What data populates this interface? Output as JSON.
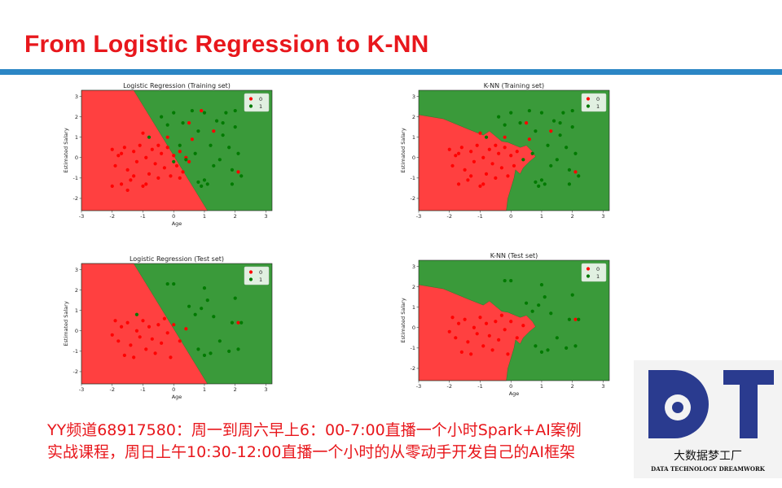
{
  "slide": {
    "title": "From Logistic Regression to K-NN",
    "footer_line1": "YY频道68917580：周一到周六早上6：00-7:00直播一个小时Spark+AI案例",
    "footer_line2": "实战课程，周日上午10:30-12:00直播一个小时的从零动手开发自己的AI框架"
  },
  "logo": {
    "letters": "DT",
    "name_cn": "大数据梦工厂",
    "name_en": "DATA TECHNOLOGY DREAMWORK",
    "color": "#2a3b8f"
  },
  "colors": {
    "class0_region": "#ff4040",
    "class1_region": "#3a9a3a",
    "class0_point": "#ff0000",
    "class1_point": "#007a00"
  },
  "chart_data": [
    {
      "type": "scatter",
      "title": "Logistic Regression (Training set)",
      "xlabel": "Age",
      "ylabel": "Estimated Salary",
      "xlim": [
        -3,
        3.2
      ],
      "ylim": [
        -2.6,
        3.3
      ],
      "xticks": [
        -3,
        -2,
        -1,
        0,
        1,
        2,
        3
      ],
      "yticks": [
        -2,
        -1,
        0,
        1,
        2,
        3
      ],
      "legend": [
        "0",
        "1"
      ],
      "legend_position": "top-right",
      "boundary": "linear",
      "series": [
        {
          "name": "0",
          "points": [
            [
              -2,
              0.4
            ],
            [
              -1.9,
              -0.4
            ],
            [
              -1.8,
              0.1
            ],
            [
              -1.7,
              -1.3
            ],
            [
              -1.6,
              0.5
            ],
            [
              -1.5,
              -0.6
            ],
            [
              -1.4,
              -1.1
            ],
            [
              -1.3,
              0.3
            ],
            [
              -1.2,
              -0.2
            ],
            [
              -1.1,
              0.6
            ],
            [
              -1,
              -1.4
            ],
            [
              -0.9,
              0.0
            ],
            [
              -0.8,
              -0.8
            ],
            [
              -0.7,
              0.4
            ],
            [
              -0.6,
              -0.3
            ],
            [
              -0.5,
              -1.0
            ],
            [
              -0.4,
              0.2
            ],
            [
              -0.3,
              -0.5
            ],
            [
              -0.2,
              0.5
            ],
            [
              -0.1,
              -0.9
            ],
            [
              0,
              0.1
            ],
            [
              0.1,
              -0.4
            ],
            [
              0.2,
              0.3
            ],
            [
              0.3,
              -0.7
            ],
            [
              0.4,
              0.0
            ],
            [
              0.5,
              -0.2
            ],
            [
              -1.7,
              0.2
            ],
            [
              -1.3,
              -0.9
            ],
            [
              -0.9,
              -1.3
            ],
            [
              -0.5,
              0.6
            ],
            [
              0.2,
              -1.0
            ],
            [
              0.6,
              0.9
            ],
            [
              -0.2,
              1.0
            ],
            [
              -1.0,
              1.2
            ],
            [
              0.5,
              1.7
            ],
            [
              1.3,
              1.3
            ],
            [
              0.9,
              2.3
            ],
            [
              2.1,
              -0.7
            ],
            [
              -2,
              -1.4
            ],
            [
              -1.5,
              -1.6
            ]
          ]
        },
        {
          "name": "1",
          "points": [
            [
              -0.4,
              2.0
            ],
            [
              -0.2,
              1.6
            ],
            [
              0,
              2.2
            ],
            [
              0.3,
              1.7
            ],
            [
              0.6,
              2.3
            ],
            [
              0.8,
              1.3
            ],
            [
              1,
              2.2
            ],
            [
              1.2,
              0.6
            ],
            [
              1.4,
              1.8
            ],
            [
              1.5,
              -0.1
            ],
            [
              1.6,
              1.1
            ],
            [
              1.7,
              2.2
            ],
            [
              1.8,
              0.5
            ],
            [
              1.9,
              -0.6
            ],
            [
              2,
              1.5
            ],
            [
              2.1,
              0.2
            ],
            [
              2.2,
              -0.9
            ],
            [
              0.8,
              -1.2
            ],
            [
              0.9,
              -1.4
            ],
            [
              1.0,
              -1.1
            ],
            [
              1.1,
              -1.3
            ],
            [
              0.7,
              0.2
            ],
            [
              0.4,
              -0.1
            ],
            [
              1.3,
              -0.4
            ],
            [
              2.0,
              2.3
            ],
            [
              1.6,
              1.7
            ],
            [
              0.2,
              0.6
            ],
            [
              -0.8,
              1.0
            ],
            [
              0.0,
              -0.2
            ],
            [
              1.9,
              -1.3
            ]
          ]
        }
      ]
    },
    {
      "type": "scatter",
      "title": "K-NN (Training set)",
      "xlabel": "",
      "ylabel": "Estimated Salary",
      "xlim": [
        -3,
        3.2
      ],
      "ylim": [
        -2.6,
        3.3
      ],
      "xticks": [
        -3,
        -2,
        -1,
        0,
        1,
        2,
        3
      ],
      "yticks": [
        -2,
        -1,
        0,
        1,
        2,
        3
      ],
      "legend": [
        "0",
        "1"
      ],
      "legend_position": "top-right",
      "boundary": "knn",
      "series": [
        {
          "name": "0",
          "points": [
            [
              -2,
              0.4
            ],
            [
              -1.9,
              -0.4
            ],
            [
              -1.8,
              0.1
            ],
            [
              -1.7,
              -1.3
            ],
            [
              -1.6,
              0.5
            ],
            [
              -1.5,
              -0.6
            ],
            [
              -1.4,
              -1.1
            ],
            [
              -1.3,
              0.3
            ],
            [
              -1.2,
              -0.2
            ],
            [
              -1.1,
              0.6
            ],
            [
              -1,
              -1.4
            ],
            [
              -0.9,
              0.0
            ],
            [
              -0.8,
              -0.8
            ],
            [
              -0.7,
              0.4
            ],
            [
              -0.6,
              -0.3
            ],
            [
              -0.5,
              -1.0
            ],
            [
              -0.4,
              0.2
            ],
            [
              -0.3,
              -0.5
            ],
            [
              -0.2,
              0.5
            ],
            [
              -0.1,
              -0.9
            ],
            [
              0,
              0.1
            ],
            [
              0.1,
              -0.4
            ],
            [
              0.2,
              0.3
            ],
            [
              -1.7,
              0.2
            ],
            [
              -1.3,
              -0.9
            ],
            [
              -0.9,
              -1.3
            ],
            [
              -0.5,
              0.6
            ],
            [
              0.6,
              0.9
            ],
            [
              -0.2,
              1.0
            ],
            [
              -1.0,
              1.2
            ],
            [
              0.5,
              1.7
            ],
            [
              1.3,
              1.3
            ],
            [
              2.1,
              -0.7
            ]
          ]
        },
        {
          "name": "1",
          "points": [
            [
              -0.4,
              2.0
            ],
            [
              -0.2,
              1.6
            ],
            [
              0,
              2.2
            ],
            [
              0.3,
              1.7
            ],
            [
              0.6,
              2.3
            ],
            [
              0.8,
              1.3
            ],
            [
              1,
              2.2
            ],
            [
              1.2,
              0.6
            ],
            [
              1.4,
              1.8
            ],
            [
              1.5,
              -0.1
            ],
            [
              1.6,
              1.1
            ],
            [
              1.7,
              2.2
            ],
            [
              1.8,
              0.5
            ],
            [
              1.9,
              -0.6
            ],
            [
              2,
              1.5
            ],
            [
              2.1,
              0.2
            ],
            [
              2.2,
              -0.9
            ],
            [
              0.8,
              -1.2
            ],
            [
              0.9,
              -1.4
            ],
            [
              1.0,
              -1.1
            ],
            [
              1.1,
              -1.3
            ],
            [
              0.7,
              0.2
            ],
            [
              0.4,
              -0.1
            ],
            [
              1.3,
              -0.4
            ],
            [
              2.0,
              2.3
            ],
            [
              1.6,
              1.7
            ],
            [
              -0.8,
              1.0
            ],
            [
              1.9,
              -1.3
            ]
          ]
        }
      ]
    },
    {
      "type": "scatter",
      "title": "Logistic Regression (Test set)",
      "xlabel": "Age",
      "ylabel": "Estimated Salary",
      "xlim": [
        -3,
        3.2
      ],
      "ylim": [
        -2.6,
        3.3
      ],
      "xticks": [
        -3,
        -2,
        -1,
        0,
        1,
        2,
        3
      ],
      "yticks": [
        -2,
        -1,
        0,
        1,
        2,
        3
      ],
      "legend": [
        "0",
        "1"
      ],
      "legend_position": "top-right",
      "boundary": "linear",
      "series": [
        {
          "name": "0",
          "points": [
            [
              -1.9,
              0.5
            ],
            [
              -1.8,
              -0.5
            ],
            [
              -1.7,
              0.2
            ],
            [
              -1.6,
              -1.2
            ],
            [
              -1.5,
              0.4
            ],
            [
              -1.4,
              -0.7
            ],
            [
              -1.3,
              -1.3
            ],
            [
              -1.2,
              0.0
            ],
            [
              -1.0,
              0.5
            ],
            [
              -0.9,
              -0.9
            ],
            [
              -0.8,
              0.2
            ],
            [
              -0.7,
              -0.4
            ],
            [
              -0.6,
              -1.1
            ],
            [
              -0.5,
              0.3
            ],
            [
              -0.4,
              -0.6
            ],
            [
              -0.3,
              0.6
            ],
            [
              -0.2,
              -0.1
            ],
            [
              -0.1,
              -1.3
            ],
            [
              0.0,
              0.3
            ],
            [
              0.2,
              -0.5
            ],
            [
              -2,
              -0.2
            ],
            [
              -1.1,
              -0.3
            ],
            [
              0.4,
              0.1
            ],
            [
              2.1,
              0.4
            ]
          ]
        },
        {
          "name": "1",
          "points": [
            [
              -0.2,
              2.3
            ],
            [
              0.0,
              2.3
            ],
            [
              0.5,
              1.2
            ],
            [
              0.7,
              0.8
            ],
            [
              1.0,
              2.1
            ],
            [
              1.1,
              1.5
            ],
            [
              1.3,
              0.7
            ],
            [
              1.5,
              -0.5
            ],
            [
              1.8,
              -1.0
            ],
            [
              2.0,
              1.6
            ],
            [
              2.1,
              -0.9
            ],
            [
              2.2,
              0.4
            ],
            [
              0.8,
              -0.9
            ],
            [
              1.0,
              -1.2
            ],
            [
              -1.2,
              0.8
            ],
            [
              1.2,
              -1.1
            ],
            [
              0.9,
              1.1
            ],
            [
              1.9,
              0.4
            ]
          ]
        }
      ]
    },
    {
      "type": "scatter",
      "title": "K-NN (Test set)",
      "xlabel": "Age",
      "ylabel": "Estimated Salary",
      "xlim": [
        -3,
        3.2
      ],
      "ylim": [
        -2.6,
        3.3
      ],
      "xticks": [
        -3,
        -2,
        -1,
        0,
        1,
        2,
        3
      ],
      "yticks": [
        -2,
        -1,
        0,
        1,
        2,
        3
      ],
      "legend": [
        "0",
        "1"
      ],
      "legend_position": "top-right",
      "boundary": "knn",
      "series": [
        {
          "name": "0",
          "points": [
            [
              -1.9,
              0.5
            ],
            [
              -1.8,
              -0.5
            ],
            [
              -1.7,
              0.2
            ],
            [
              -1.6,
              -1.2
            ],
            [
              -1.5,
              0.4
            ],
            [
              -1.4,
              -0.7
            ],
            [
              -1.3,
              -1.3
            ],
            [
              -1.2,
              0.0
            ],
            [
              -1.0,
              0.5
            ],
            [
              -0.9,
              -0.9
            ],
            [
              -0.8,
              0.2
            ],
            [
              -0.7,
              -0.4
            ],
            [
              -0.6,
              -1.1
            ],
            [
              -0.5,
              0.3
            ],
            [
              -0.4,
              -0.6
            ],
            [
              -0.3,
              0.6
            ],
            [
              -0.2,
              -0.1
            ],
            [
              -0.1,
              -1.3
            ],
            [
              0.0,
              0.3
            ],
            [
              0.2,
              -0.5
            ],
            [
              -2,
              -0.2
            ],
            [
              -1.1,
              -0.3
            ],
            [
              0.4,
              0.1
            ],
            [
              2.1,
              0.4
            ]
          ]
        },
        {
          "name": "1",
          "points": [
            [
              -0.2,
              2.3
            ],
            [
              0.0,
              2.3
            ],
            [
              0.5,
              1.2
            ],
            [
              0.7,
              0.8
            ],
            [
              1.0,
              2.1
            ],
            [
              1.1,
              1.5
            ],
            [
              1.3,
              0.7
            ],
            [
              1.5,
              -0.5
            ],
            [
              1.8,
              -1.0
            ],
            [
              2.0,
              1.6
            ],
            [
              2.1,
              -0.9
            ],
            [
              2.2,
              0.4
            ],
            [
              0.8,
              -0.9
            ],
            [
              1.0,
              -1.2
            ],
            [
              1.2,
              -1.1
            ],
            [
              0.9,
              1.1
            ],
            [
              1.9,
              0.4
            ]
          ]
        }
      ]
    }
  ]
}
